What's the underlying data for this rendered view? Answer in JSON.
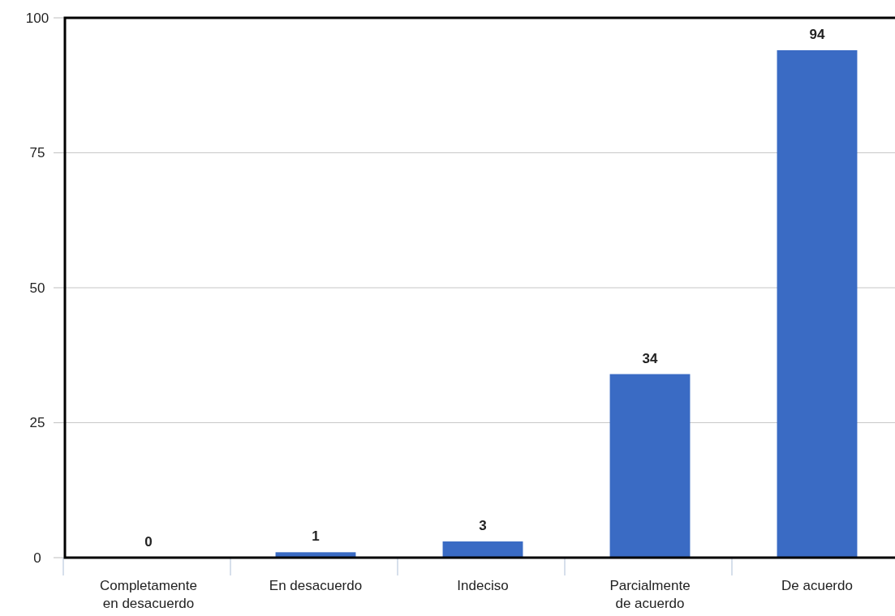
{
  "chart_data": {
    "type": "bar",
    "categories": [
      "Completamente en desacuerdo",
      "En desacuerdo",
      "Indeciso",
      "Parcialmente de acuerdo",
      "De acuerdo"
    ],
    "values": [
      0,
      1,
      3,
      34,
      94
    ],
    "color": "#3a6bc4",
    "ylim": [
      0,
      100
    ],
    "yticks": [
      0,
      25,
      50,
      75,
      100
    ],
    "grid": "y",
    "data_labels": true
  }
}
